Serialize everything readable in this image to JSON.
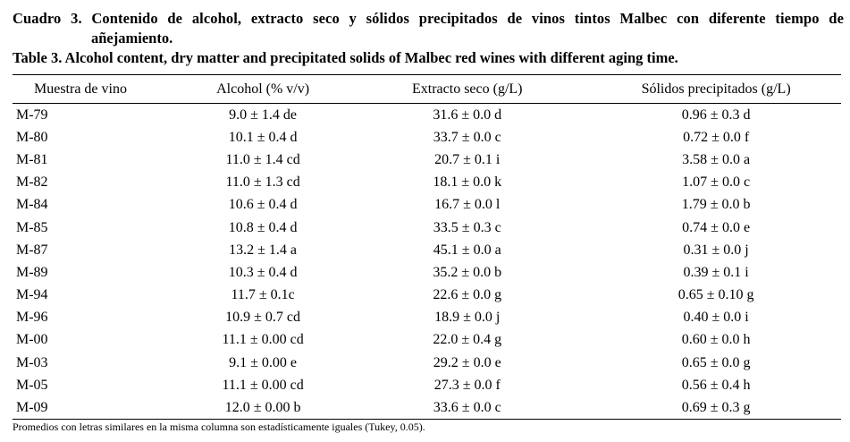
{
  "caption_es": {
    "line1": "Cuadro 3. Contenido de alcohol, extracto seco y sólidos precipitados de vinos tintos Malbec con diferente tiempo de",
    "line2": "añejamiento."
  },
  "caption_en": "Table 3. Alcohol content, dry matter and precipitated solids of Malbec red wines with different aging time.",
  "table": {
    "headers": [
      "Muestra de vino",
      "Alcohol (% v/v)",
      "Extracto seco (g/L)",
      "Sólidos precipitados (g/L)"
    ],
    "rows": [
      [
        "M-79",
        "9.0 ± 1.4 de",
        "31.6 ± 0.0 d",
        "0.96 ± 0.3 d"
      ],
      [
        "M-80",
        "10.1 ± 0.4 d",
        "33.7 ± 0.0 c",
        "0.72 ± 0.0 f"
      ],
      [
        "M-81",
        "11.0 ± 1.4 cd",
        "20.7 ± 0.1 i",
        "3.58 ± 0.0 a"
      ],
      [
        "M-82",
        "11.0 ± 1.3 cd",
        "18.1 ± 0.0 k",
        "1.07 ± 0.0 c"
      ],
      [
        "M-84",
        "10.6 ± 0.4 d",
        "16.7 ± 0.0 l",
        "1.79 ± 0.0 b"
      ],
      [
        "M-85",
        "10.8 ± 0.4 d",
        "33.5 ± 0.3 c",
        "0.74 ± 0.0 e"
      ],
      [
        "M-87",
        "13.2 ± 1.4 a",
        "45.1 ± 0.0 a",
        "0.31 ± 0.0 j"
      ],
      [
        "M-89",
        "10.3 ± 0.4 d",
        "35.2 ± 0.0 b",
        "0.39 ± 0.1 i"
      ],
      [
        "M-94",
        "11.7 ± 0.1c",
        "22.6 ± 0.0 g",
        "0.65 ± 0.10 g"
      ],
      [
        "M-96",
        "10.9 ± 0.7 cd",
        "18.9 ± 0.0 j",
        "0.40 ± 0.0 i"
      ],
      [
        "M-00",
        "11.1 ± 0.00 cd",
        "22.0 ± 0.4 g",
        "0.60 ± 0.0 h"
      ],
      [
        "M-03",
        "9.1 ± 0.00 e",
        "29.2 ± 0.0 e",
        "0.65 ± 0.0 g"
      ],
      [
        "M-05",
        "11.1 ± 0.00 cd",
        "27.3 ± 0.0 f",
        "0.56 ± 0.4 h"
      ],
      [
        "M-09",
        "12.0 ± 0.00 b",
        "33.6 ± 0.0 c",
        "0.69 ± 0.3 g"
      ]
    ]
  },
  "footnote": "Promedios con letras similares en la misma columna son estadísticamente iguales (Tukey, 0.05)."
}
